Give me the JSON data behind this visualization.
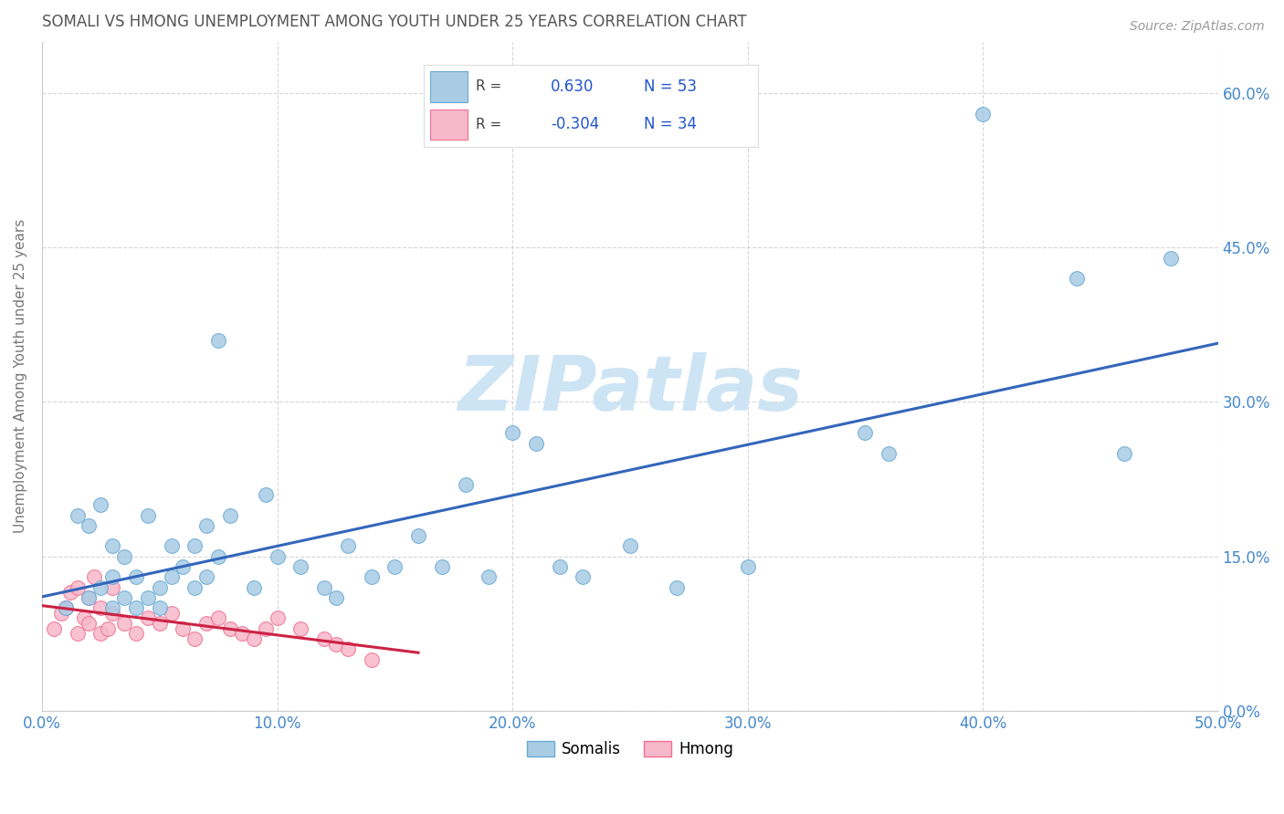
{
  "title": "SOMALI VS HMONG UNEMPLOYMENT AMONG YOUTH UNDER 25 YEARS CORRELATION CHART",
  "source": "Source: ZipAtlas.com",
  "ylabel": "Unemployment Among Youth under 25 years",
  "xlim": [
    0.0,
    50.0
  ],
  "ylim": [
    0.0,
    65.0
  ],
  "x_ticks": [
    0.0,
    10.0,
    20.0,
    30.0,
    40.0,
    50.0
  ],
  "x_tick_labels": [
    "0.0%",
    "10.0%",
    "20.0%",
    "30.0%",
    "40.0%",
    "50.0%"
  ],
  "y_ticks": [
    0.0,
    15.0,
    30.0,
    45.0,
    60.0
  ],
  "y_tick_labels": [
    "0.0%",
    "15.0%",
    "30.0%",
    "45.0%",
    "60.0%"
  ],
  "somali_color": "#a8cce4",
  "hmong_color": "#f7b8cb",
  "somali_edge": "#6aaad4",
  "hmong_edge": "#f07090",
  "trend_somali_color": "#3366bb",
  "trend_hmong_color": "#cc2244",
  "watermark": "ZIPatlas",
  "somali_x": [
    1.0,
    1.5,
    2.0,
    2.0,
    2.5,
    2.5,
    3.0,
    3.0,
    3.0,
    3.5,
    3.5,
    4.0,
    4.0,
    4.5,
    4.5,
    5.0,
    5.0,
    5.5,
    5.5,
    6.0,
    6.5,
    6.5,
    7.0,
    7.0,
    7.5,
    7.5,
    8.0,
    9.0,
    9.5,
    10.0,
    11.0,
    12.0,
    12.5,
    13.0,
    14.0,
    15.0,
    16.0,
    17.0,
    18.0,
    19.0,
    20.0,
    21.0,
    22.0,
    23.0,
    25.0,
    27.0,
    30.0,
    35.0,
    36.0,
    40.0,
    44.0,
    46.0,
    48.0
  ],
  "somali_y": [
    10.0,
    19.0,
    11.0,
    18.0,
    12.0,
    20.0,
    10.0,
    13.0,
    16.0,
    11.0,
    15.0,
    10.0,
    13.0,
    11.0,
    19.0,
    10.0,
    12.0,
    16.0,
    13.0,
    14.0,
    12.0,
    16.0,
    13.0,
    18.0,
    15.0,
    36.0,
    19.0,
    12.0,
    21.0,
    15.0,
    14.0,
    12.0,
    11.0,
    16.0,
    13.0,
    14.0,
    17.0,
    14.0,
    22.0,
    13.0,
    27.0,
    26.0,
    14.0,
    13.0,
    16.0,
    12.0,
    14.0,
    27.0,
    25.0,
    58.0,
    42.0,
    25.0,
    44.0
  ],
  "hmong_x": [
    0.5,
    0.8,
    1.0,
    1.2,
    1.5,
    1.5,
    1.8,
    2.0,
    2.0,
    2.2,
    2.5,
    2.5,
    2.8,
    3.0,
    3.0,
    3.5,
    4.0,
    4.5,
    5.0,
    5.5,
    6.0,
    6.5,
    7.0,
    7.5,
    8.0,
    8.5,
    9.0,
    9.5,
    10.0,
    11.0,
    12.0,
    12.5,
    13.0,
    14.0
  ],
  "hmong_y": [
    8.0,
    9.5,
    10.0,
    11.5,
    7.5,
    12.0,
    9.0,
    8.5,
    11.0,
    13.0,
    7.5,
    10.0,
    8.0,
    9.5,
    12.0,
    8.5,
    7.5,
    9.0,
    8.5,
    9.5,
    8.0,
    7.0,
    8.5,
    9.0,
    8.0,
    7.5,
    7.0,
    8.0,
    9.0,
    8.0,
    7.0,
    6.5,
    6.0,
    5.0
  ],
  "background_color": "#ffffff",
  "grid_color": "#cccccc",
  "title_color": "#555555",
  "axis_label_color": "#777777",
  "tick_label_color": "#4488cc",
  "watermark_color": "#cde4f5",
  "watermark_fontsize": 60,
  "legend_R_somali": "0.630",
  "legend_N_somali": "53",
  "legend_R_hmong": "-0.304",
  "legend_N_hmong": "34"
}
